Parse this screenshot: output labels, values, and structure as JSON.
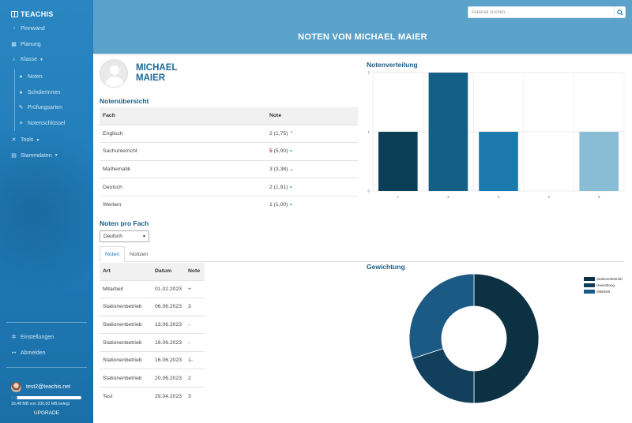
{
  "app": {
    "brand": "TEACHIS"
  },
  "sidebar": {
    "items": [
      {
        "label": "Pinnwand",
        "icon": "tachometer-icon"
      },
      {
        "label": "Planung",
        "icon": "calendar-icon"
      },
      {
        "label": "Klasse",
        "icon": "bell-icon"
      }
    ],
    "sub_items": [
      {
        "label": "Noten",
        "icon": "graduation-cap-icon"
      },
      {
        "label": "SchülerInnen",
        "icon": "users-icon"
      },
      {
        "label": "Prüfungsarten",
        "icon": "pencil-icon"
      },
      {
        "label": "Notenschlüssel",
        "icon": "list-icon"
      }
    ],
    "items2": [
      {
        "label": "Tools",
        "icon": "wrench-icon"
      },
      {
        "label": "Stammdaten",
        "icon": "database-icon"
      }
    ],
    "bottom": [
      {
        "label": "Einstellungen",
        "icon": "gear-icon"
      },
      {
        "label": "Abmelden",
        "icon": "sign-out-icon"
      }
    ],
    "user_email": "test2@teachis.net",
    "storage_text": "18,48 MB von 200,00 MB belegt",
    "storage_fraction": 0.0924,
    "upgrade_label": "UPGRADE"
  },
  "header": {
    "search_placeholder": "Material suchen...",
    "title": "NOTEN VON MICHAEL MAIER"
  },
  "profile": {
    "name": "MICHAEL MAIER"
  },
  "overview": {
    "title": "Notenübersicht",
    "columns": [
      "Fach",
      "Note"
    ],
    "rows": [
      {
        "subject": "Englisch",
        "grade": "2",
        "avg": "(1,75)",
        "trend": "up"
      },
      {
        "subject": "Sachunterricht",
        "grade": "5",
        "avg": "(5,00)",
        "trend": "equal"
      },
      {
        "subject": "Mathematik",
        "grade": "3",
        "avg": "(3,38)",
        "trend": "down"
      },
      {
        "subject": "Deutsch",
        "grade": "2",
        "avg": "(1,91)",
        "trend": "equal"
      },
      {
        "subject": "Werken",
        "grade": "1",
        "avg": "(1,00)",
        "trend": "equal"
      }
    ]
  },
  "per_subject": {
    "title": "Noten pro Fach",
    "selected_subject": "Deutsch",
    "tabs": [
      "Noten",
      "Notizen"
    ],
    "columns": [
      "Art",
      "Datum",
      "Note"
    ],
    "rows": [
      {
        "type": "Mitarbeit",
        "date": "01.02.2023",
        "grade": "+"
      },
      {
        "type": "Stationenbetrieb",
        "date": "06.06.2023",
        "grade": "3"
      },
      {
        "type": "Stationenbetrieb",
        "date": "13.06.2023",
        "grade": "-"
      },
      {
        "type": "Stationenbetrieb",
        "date": "16.06.2023",
        "grade": "-"
      },
      {
        "type": "Stationenbetrieb",
        "date": "16.06.2023",
        "grade": "1-"
      },
      {
        "type": "Stationenbetrieb",
        "date": "20.06.2023",
        "grade": "2"
      },
      {
        "type": "Test",
        "date": "29.04.2023",
        "grade": "3"
      }
    ]
  },
  "chart_data": [
    {
      "type": "bar",
      "title": "Notenverteilung",
      "categories": [
        "1",
        "2",
        "3",
        "4",
        "5"
      ],
      "values": [
        1,
        2,
        1,
        0,
        1
      ],
      "colors": [
        "#0b3f58",
        "#135f86",
        "#1b79ad",
        "#1b79ad",
        "#89bdd6"
      ],
      "ylim": [
        0,
        2
      ],
      "yticks": [
        "0",
        "1",
        "2"
      ],
      "grid": true,
      "xlabel": "",
      "ylabel": ""
    },
    {
      "type": "pie",
      "title": "Gewichtung",
      "donut": true,
      "labels": [
        "Stationenbetrieb",
        "Hausübung",
        "Mitarbeit"
      ],
      "values": [
        50,
        20,
        30
      ],
      "colors": [
        "#0b3143",
        "#123f5c",
        "#1a5a85"
      ],
      "legend_position": "top-right"
    }
  ]
}
